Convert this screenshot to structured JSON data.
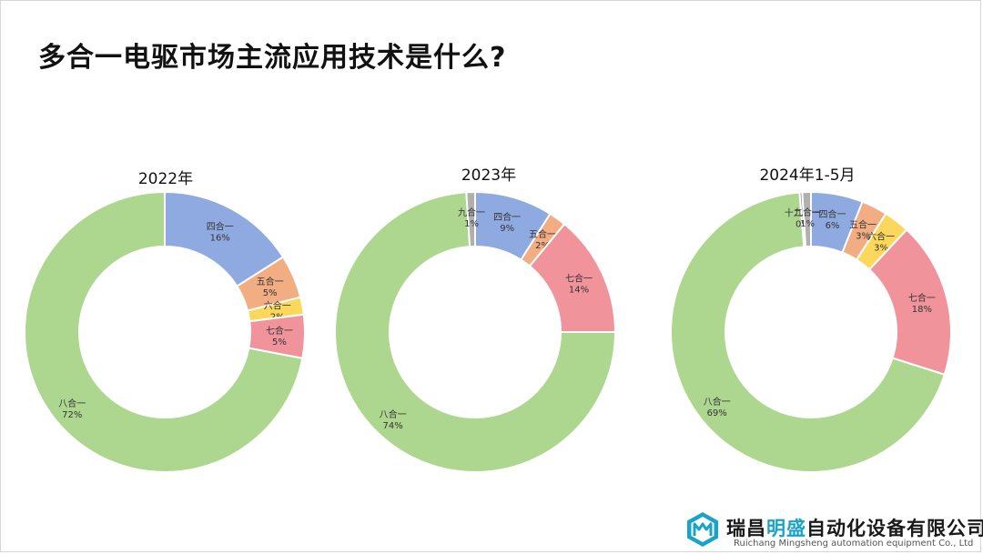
{
  "slide": {
    "title": "多合一电驱市场主流应用技术是什么?"
  },
  "colors": {
    "四合一": "#8eaae0",
    "五合一": "#f2ad82",
    "六合一": "#fbd75b",
    "七合一": "#f0939b",
    "八合一": "#add78e",
    "九合一": "#b0b0b0",
    "十二合一": "#8a8a8a"
  },
  "chart_data": [
    {
      "type": "pie",
      "variant": "donut",
      "title": "2022年",
      "slices": [
        {
          "label": "四合一",
          "value": 16,
          "value_label": "16%"
        },
        {
          "label": "五合一",
          "value": 5,
          "value_label": "5%"
        },
        {
          "label": "六合一",
          "value": 2,
          "value_label": "2%"
        },
        {
          "label": "七合一",
          "value": 5,
          "value_label": "5%"
        },
        {
          "label": "八合一",
          "value": 72,
          "value_label": "72%"
        }
      ]
    },
    {
      "type": "pie",
      "variant": "donut",
      "title": "2023年",
      "slices": [
        {
          "label": "四合一",
          "value": 9,
          "value_label": "9%"
        },
        {
          "label": "五合一",
          "value": 2,
          "value_label": "2%"
        },
        {
          "label": "七合一",
          "value": 14,
          "value_label": "14%"
        },
        {
          "label": "八合一",
          "value": 74,
          "value_label": "74%"
        },
        {
          "label": "九合一",
          "value": 1,
          "value_label": "1%"
        }
      ]
    },
    {
      "type": "pie",
      "variant": "donut",
      "title": "2024年1-5月",
      "slices": [
        {
          "label": "四合一",
          "value": 6,
          "value_label": "6%"
        },
        {
          "label": "五合一",
          "value": 3,
          "value_label": "3%"
        },
        {
          "label": "六合一",
          "value": 3,
          "value_label": "3%"
        },
        {
          "label": "七合一",
          "value": 18,
          "value_label": "18%"
        },
        {
          "label": "八合一",
          "value": 69,
          "value_label": "69%"
        },
        {
          "label": "十二合一",
          "value": 0.3,
          "value_label": "0%"
        },
        {
          "label": "九合一",
          "value": 1,
          "value_label": "1%"
        }
      ]
    }
  ],
  "footer": {
    "company_pre": "瑞昌",
    "company_hl": "明盛",
    "company_post": "自动化设备有限公司",
    "company_en": "Ruichang Mingsheng automation equipment Co., Ltd"
  }
}
